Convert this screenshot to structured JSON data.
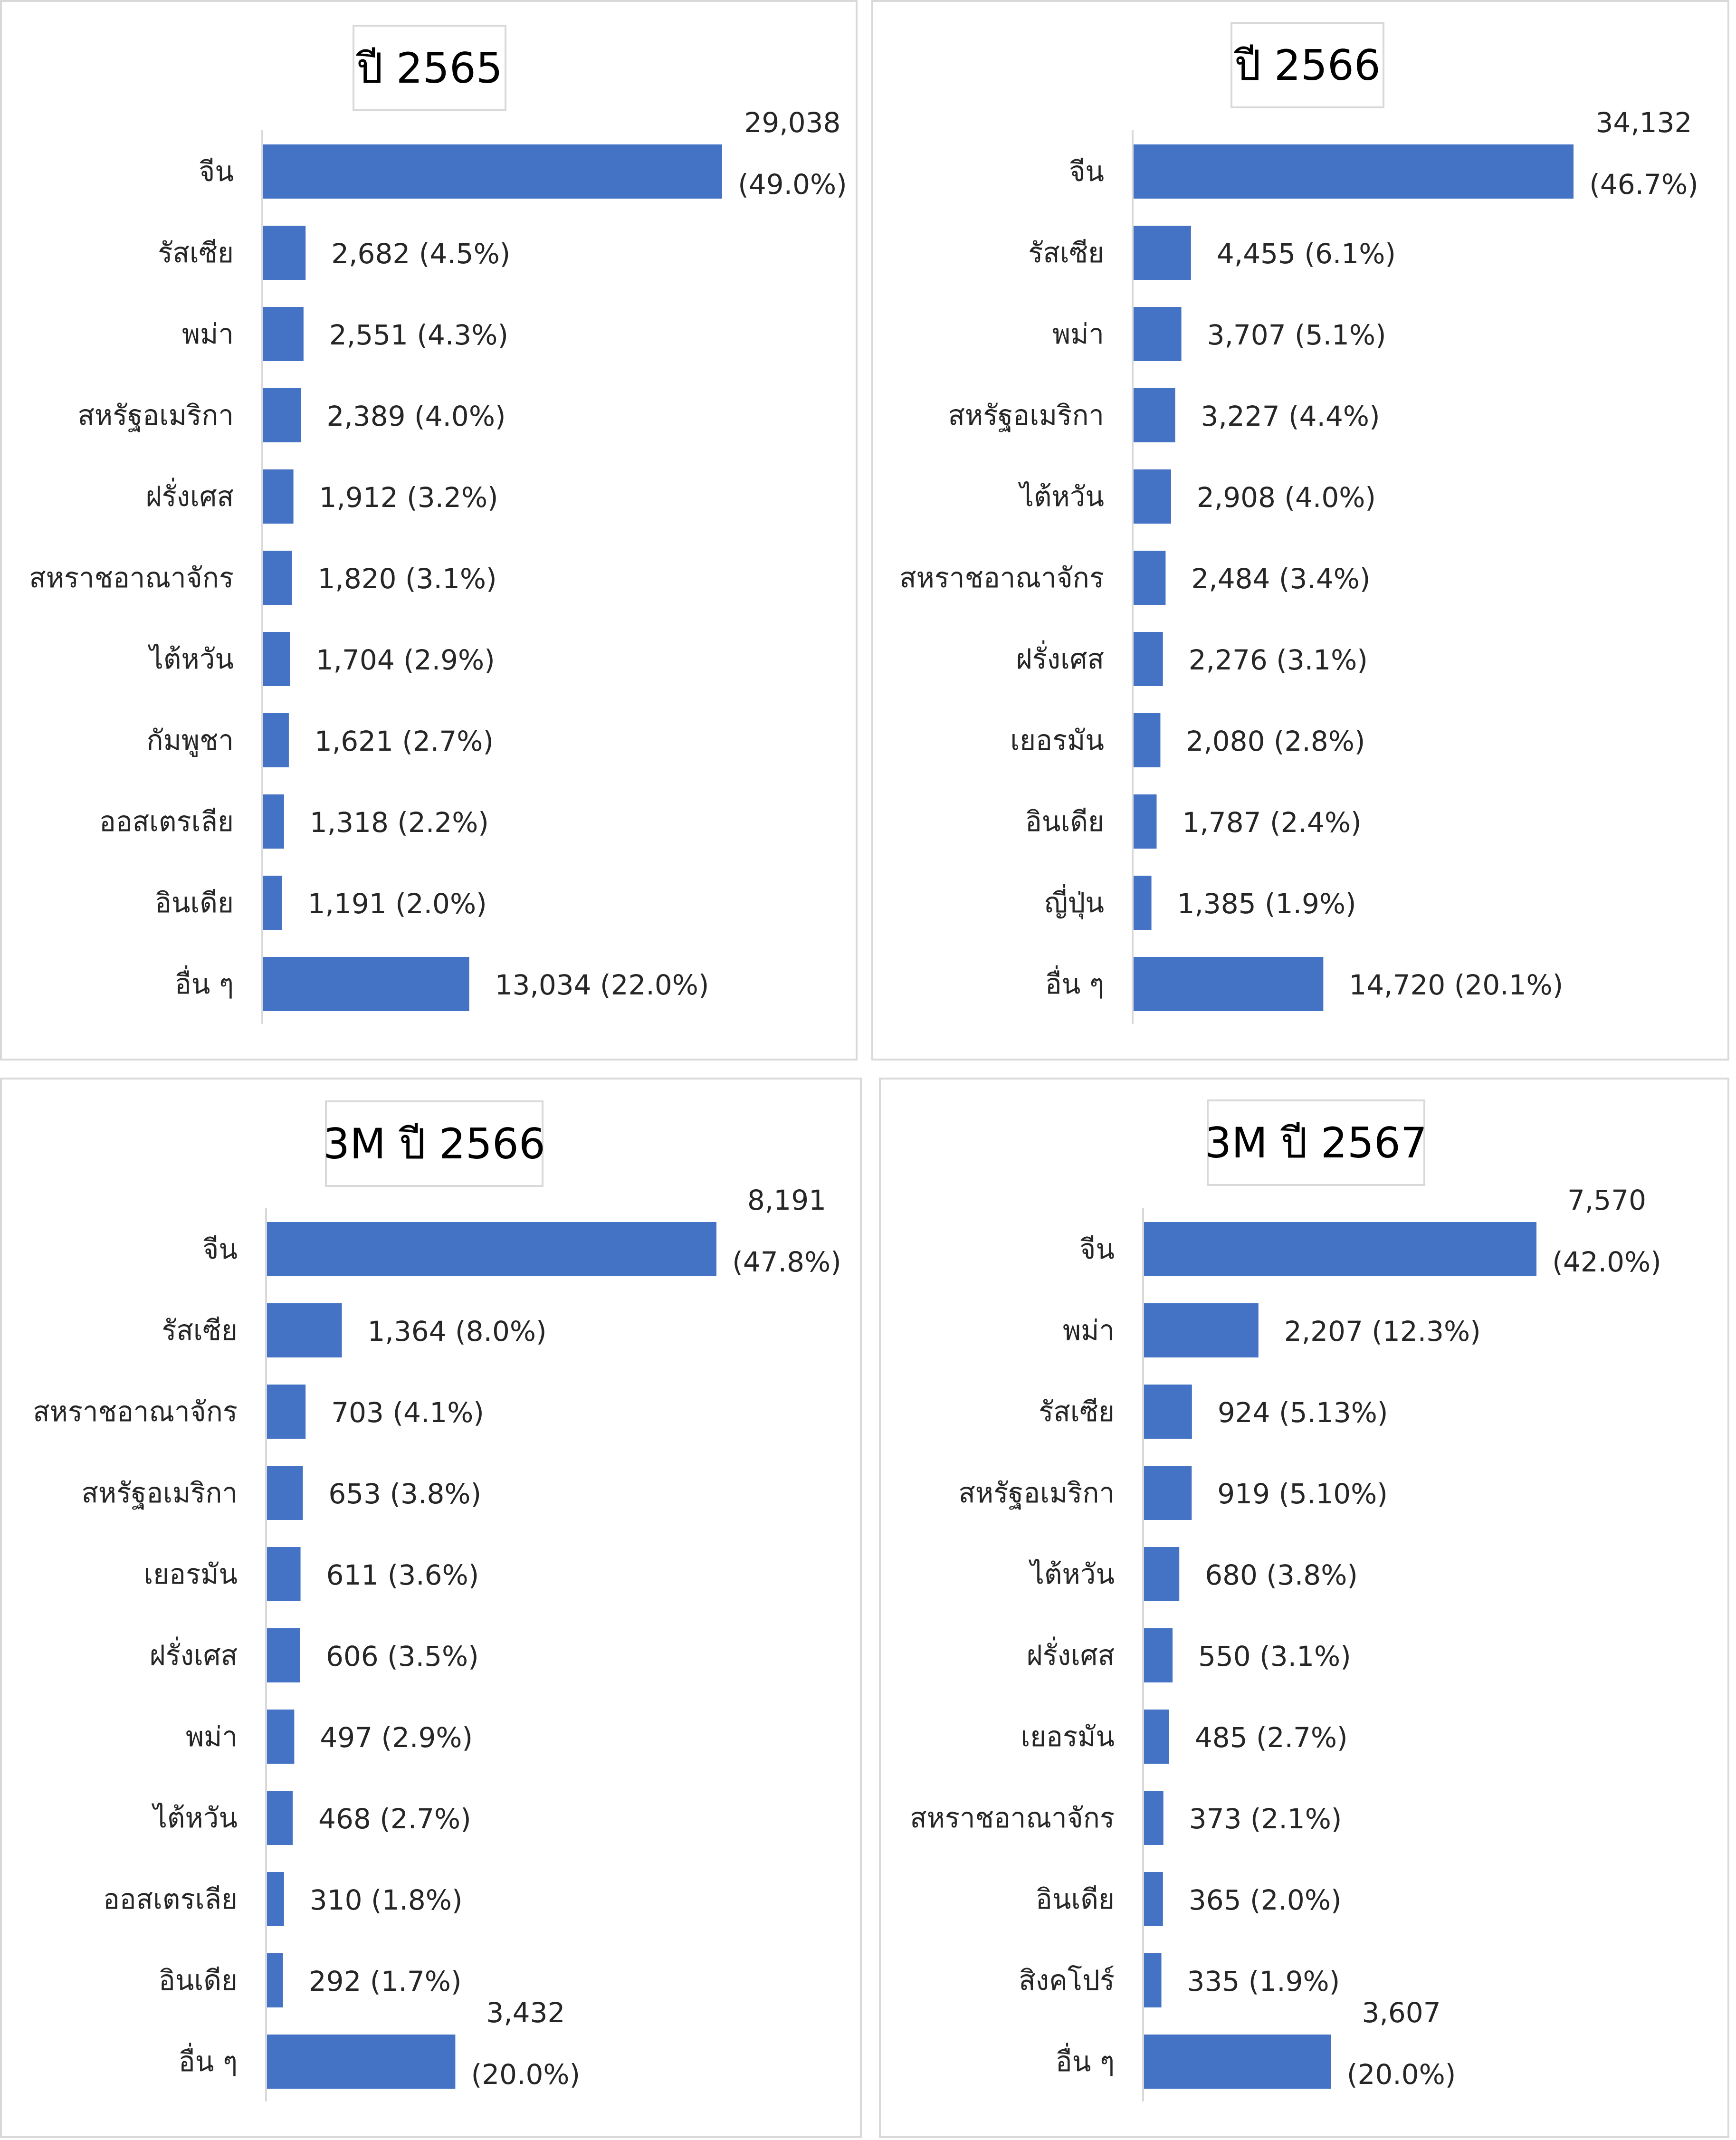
{
  "colors": {
    "bar": "#4472c4",
    "border": "#d9d9d9",
    "text": "#262626"
  },
  "chart_data": [
    {
      "type": "bar",
      "orientation": "horizontal",
      "title": "ปี 2565",
      "categories": [
        "จีน",
        "รัสเซีย",
        "พม่า",
        "สหรัฐอเมริกา",
        "ฝรั่งเศส",
        "สหราชอาณาจักร",
        "ไต้หวัน",
        "กัมพูชา",
        "ออสเตรเลีย",
        "อินเดีย",
        "อื่น ๆ"
      ],
      "values": [
        29038,
        2682,
        2551,
        2389,
        1912,
        1820,
        1704,
        1621,
        1318,
        1191,
        13034
      ],
      "labels": [
        "29,038",
        "2,682 (4.5%)",
        "2,551 (4.3%)",
        "2,389 (4.0%)",
        "1,912 (3.2%)",
        "1,820 (3.1%)",
        "1,704 (2.9%)",
        "1,621 (2.7%)",
        "1,318 (2.2%)",
        "1,191 (2.0%)",
        "13,034 (22.0%)"
      ],
      "label_second_lines": [
        "(49.0%)",
        "",
        "",
        "",
        "",
        "",
        "",
        "",
        "",
        "",
        ""
      ],
      "xlim": [
        0,
        29038
      ],
      "grid": false,
      "legend": "none"
    },
    {
      "type": "bar",
      "orientation": "horizontal",
      "title": "ปี 2566",
      "categories": [
        "จีน",
        "รัสเซีย",
        "พม่า",
        "สหรัฐอเมริกา",
        "ไต้หวัน",
        "สหราชอาณาจักร",
        "ฝรั่งเศส",
        "เยอรมัน",
        "อินเดีย",
        "ญี่ปุ่น",
        "อื่น ๆ"
      ],
      "values": [
        34132,
        4455,
        3707,
        3227,
        2908,
        2484,
        2276,
        2080,
        1787,
        1385,
        14720
      ],
      "labels": [
        "34,132",
        "4,455 (6.1%)",
        "3,707 (5.1%)",
        "3,227 (4.4%)",
        "2,908 (4.0%)",
        "2,484 (3.4%)",
        "2,276 (3.1%)",
        "2,080 (2.8%)",
        "1,787 (2.4%)",
        "1,385 (1.9%)",
        "14,720 (20.1%)"
      ],
      "label_second_lines": [
        "(46.7%)",
        "",
        "",
        "",
        "",
        "",
        "",
        "",
        "",
        "",
        ""
      ],
      "xlim": [
        0,
        34132
      ],
      "grid": false,
      "legend": "none"
    },
    {
      "type": "bar",
      "orientation": "horizontal",
      "title": "3M ปี 2566",
      "categories": [
        "จีน",
        "รัสเซีย",
        "สหราชอาณาจักร",
        "สหรัฐอเมริกา",
        "เยอรมัน",
        "ฝรั่งเศส",
        "พม่า",
        "ไต้หวัน",
        "ออสเตรเลีย",
        "อินเดีย",
        "อื่น ๆ"
      ],
      "values": [
        8191,
        1364,
        703,
        653,
        611,
        606,
        497,
        468,
        310,
        292,
        3432
      ],
      "labels": [
        "8,191",
        "1,364 (8.0%)",
        "703 (4.1%)",
        "653 (3.8%)",
        "611 (3.6%)",
        "606 (3.5%)",
        "497 (2.9%)",
        "468 (2.7%)",
        "310 (1.8%)",
        "292 (1.7%)",
        "3,432"
      ],
      "label_second_lines": [
        "(47.8%)",
        "",
        "",
        "",
        "",
        "",
        "",
        "",
        "",
        "",
        "(20.0%)"
      ],
      "xlim": [
        0,
        8191
      ],
      "grid": false,
      "legend": "none"
    },
    {
      "type": "bar",
      "orientation": "horizontal",
      "title": "3M ปี 2567",
      "categories": [
        "จีน",
        "พม่า",
        "รัสเซีย",
        "สหรัฐอเมริกา",
        "ไต้หวัน",
        "ฝรั่งเศส",
        "เยอรมัน",
        "สหราชอาณาจักร",
        "อินเดีย",
        "สิงคโปร์",
        "อื่น ๆ"
      ],
      "values": [
        7570,
        2207,
        924,
        919,
        680,
        550,
        485,
        373,
        365,
        335,
        3607
      ],
      "labels": [
        "7,570",
        "2,207 (12.3%)",
        "924 (5.13%)",
        "919 (5.10%)",
        "680 (3.8%)",
        "550 (3.1%)",
        "485 (2.7%)",
        "373 (2.1%)",
        "365 (2.0%)",
        "335 (1.9%)",
        "3,607"
      ],
      "label_second_lines": [
        "(42.0%)",
        "",
        "",
        "",
        "",
        "",
        "",
        "",
        "",
        "",
        "(20.0%)"
      ],
      "xlim": [
        0,
        7570
      ],
      "grid": false,
      "legend": "none"
    }
  ]
}
